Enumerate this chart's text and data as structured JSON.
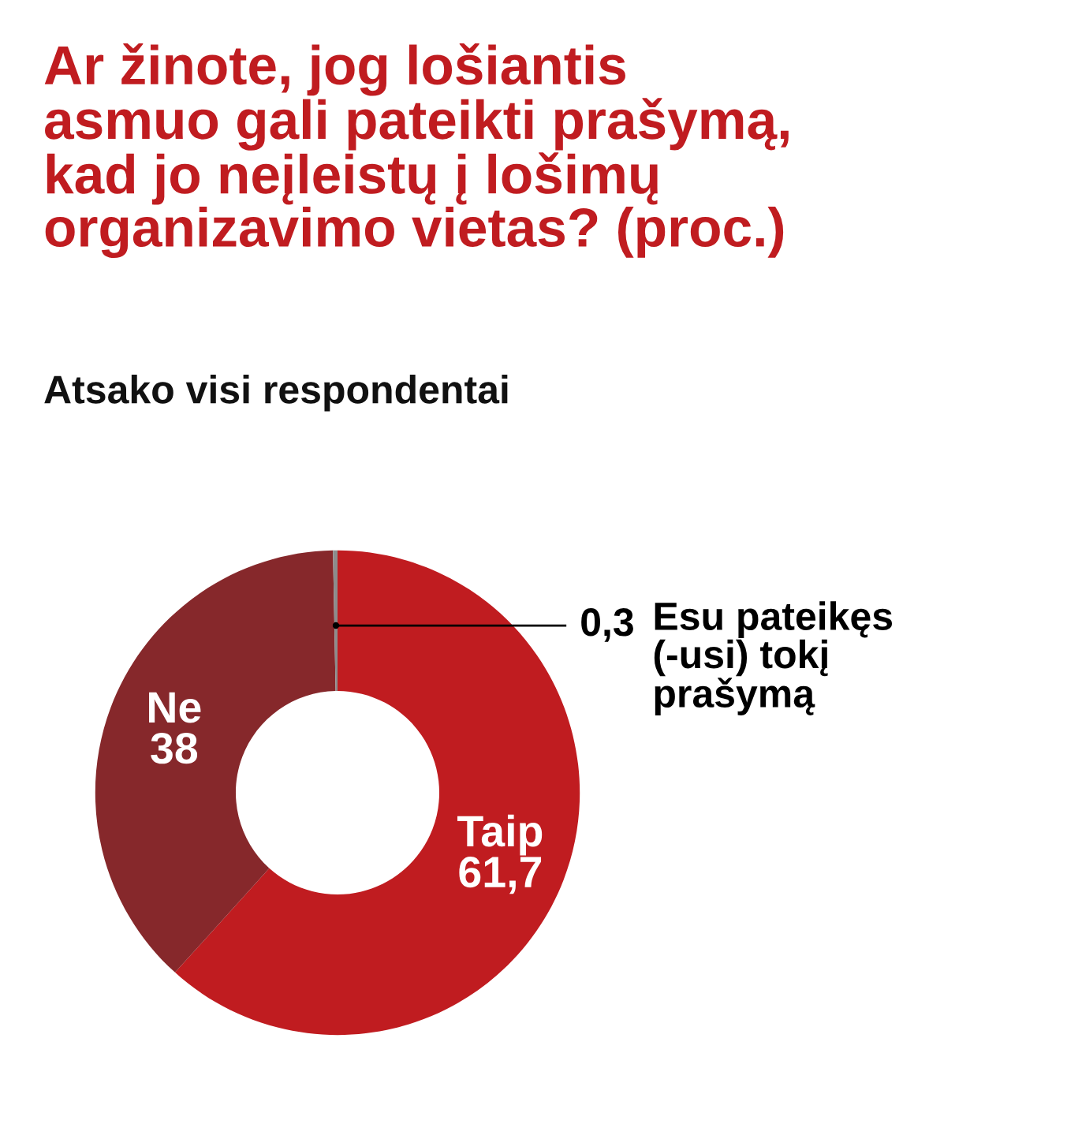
{
  "chart_data": {
    "type": "donut",
    "title": "Ar žinote, jog lošiantis\nasmuo gali pateikti prašymą,\nkad jo neįleistų į lošimų\norganizavimo vietas? (proc.)",
    "subtitle": "Atsako visi respondentai",
    "categories": [
      "Taip",
      "Ne",
      "Esu pateikęs\n(-usi) tokį\nprašymą"
    ],
    "values": [
      61.7,
      38,
      0.3
    ],
    "value_labels": [
      "61,7",
      "38",
      "0,3"
    ],
    "colors": [
      "#c01c20",
      "#86282b",
      "#8c8c8c"
    ]
  }
}
